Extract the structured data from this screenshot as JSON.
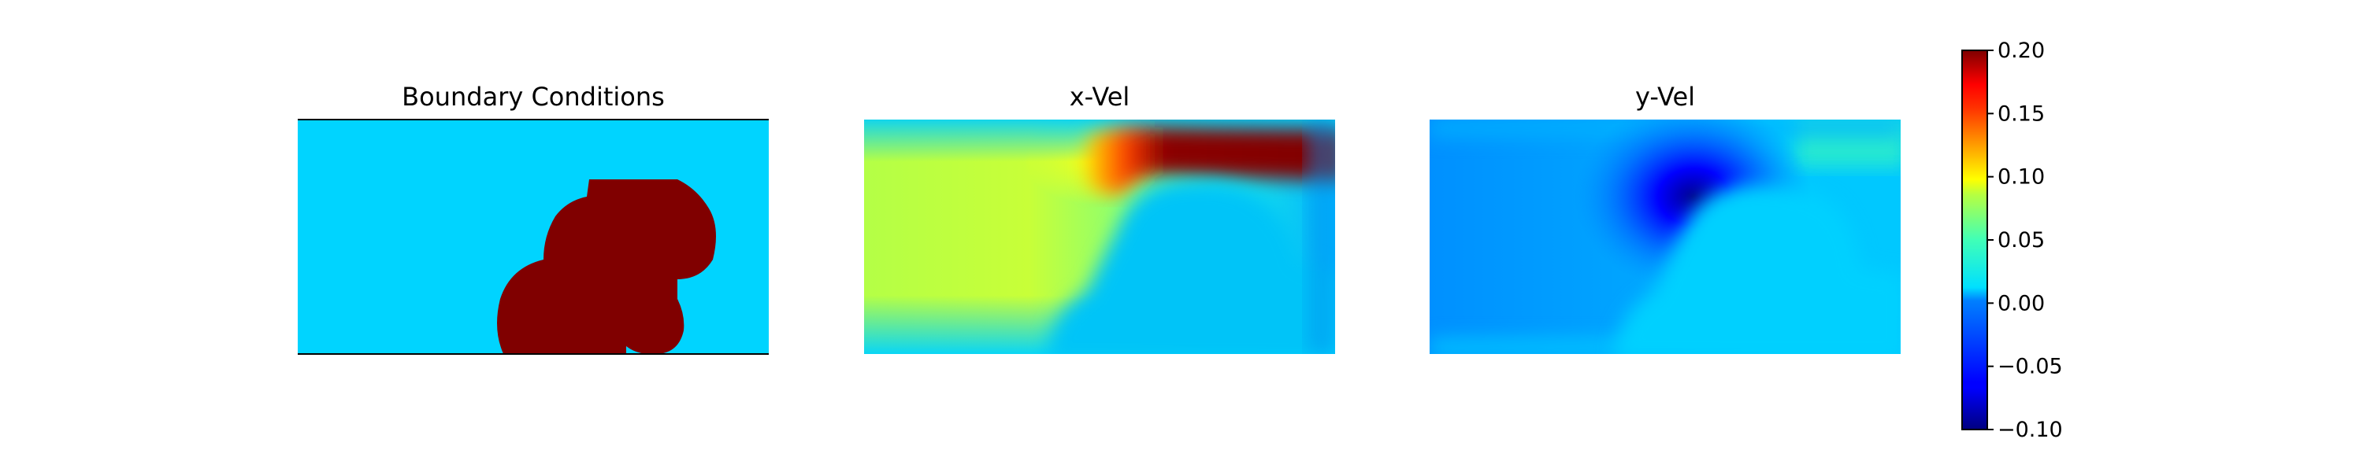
{
  "chart_data": [
    {
      "type": "heatmap",
      "title": "Boundary Conditions",
      "field": "mask",
      "colormap": "jet",
      "background_value": 0.0,
      "obstacle_value": 0.2,
      "frame": "top and bottom walls only"
    },
    {
      "type": "heatmap",
      "title": "x-Vel",
      "field": "x-velocity",
      "colormap": "jet",
      "range": [
        -0.1,
        0.2
      ]
    },
    {
      "type": "heatmap",
      "title": "y-Vel",
      "field": "y-velocity",
      "colormap": "jet",
      "range": [
        -0.1,
        0.2
      ]
    }
  ],
  "colorbar": {
    "colormap": "jet",
    "range": [
      -0.1,
      0.2
    ],
    "ticks": [
      "0.20",
      "0.15",
      "0.10",
      "0.05",
      "0.00",
      "−0.05",
      "−0.10"
    ],
    "tick_values": [
      0.2,
      0.15,
      0.1,
      0.05,
      0.0,
      -0.05,
      -0.1
    ]
  }
}
